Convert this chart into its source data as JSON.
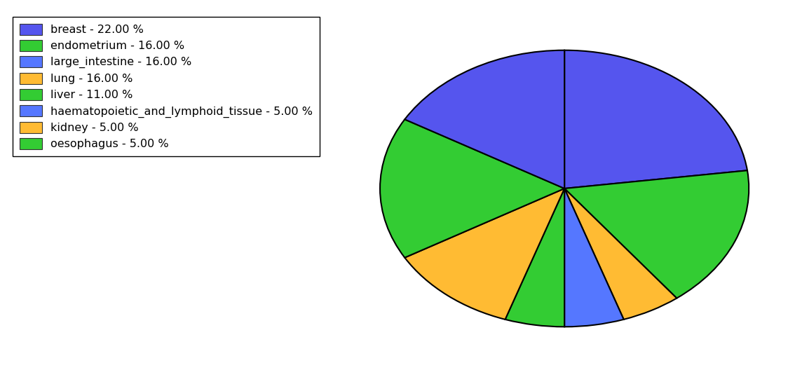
{
  "labels": [
    "breast",
    "endometrium",
    "large_intestine",
    "lung",
    "liver",
    "haematopoietic_and_lymphoid_tissue",
    "kidney",
    "oesophagus"
  ],
  "values": [
    22.0,
    16.0,
    16.0,
    16.0,
    11.0,
    5.0,
    5.0,
    5.0
  ],
  "colors": [
    "#5555ee",
    "#33cc33",
    "#ffbb33",
    "#5577ff",
    "#33cc33",
    "#ffbb33",
    "#33cc33",
    "#5555ee"
  ],
  "pie_order_values": [
    22.0,
    5.0,
    5.0,
    5.0,
    11.0,
    16.0,
    16.0,
    16.0
  ],
  "pie_order_colors": [
    "#5555ee",
    "#33cc33",
    "#ffbb33",
    "#5577ff",
    "#33cc33",
    "#ffbb33",
    "#33cc33",
    "#5555ee"
  ],
  "legend_labels": [
    "breast - 22.00 %",
    "endometrium - 16.00 %",
    "large_intestine - 16.00 %",
    "lung - 16.00 %",
    "liver - 11.00 %",
    "haematopoietic_and_lymphoid_tissue - 5.00 %",
    "kidney - 5.00 %",
    "oesophagus - 5.00 %"
  ],
  "legend_colors": [
    "#5555ee",
    "#33cc33",
    "#5577ff",
    "#ffbb33",
    "#33cc33",
    "#5577ff",
    "#ffbb33",
    "#33cc33"
  ],
  "startangle": 90,
  "figsize": [
    11.34,
    5.38
  ],
  "background_color": "#ffffff",
  "edge_color": "#000000",
  "linewidth": 1.5,
  "aspect_ratio": 0.75
}
